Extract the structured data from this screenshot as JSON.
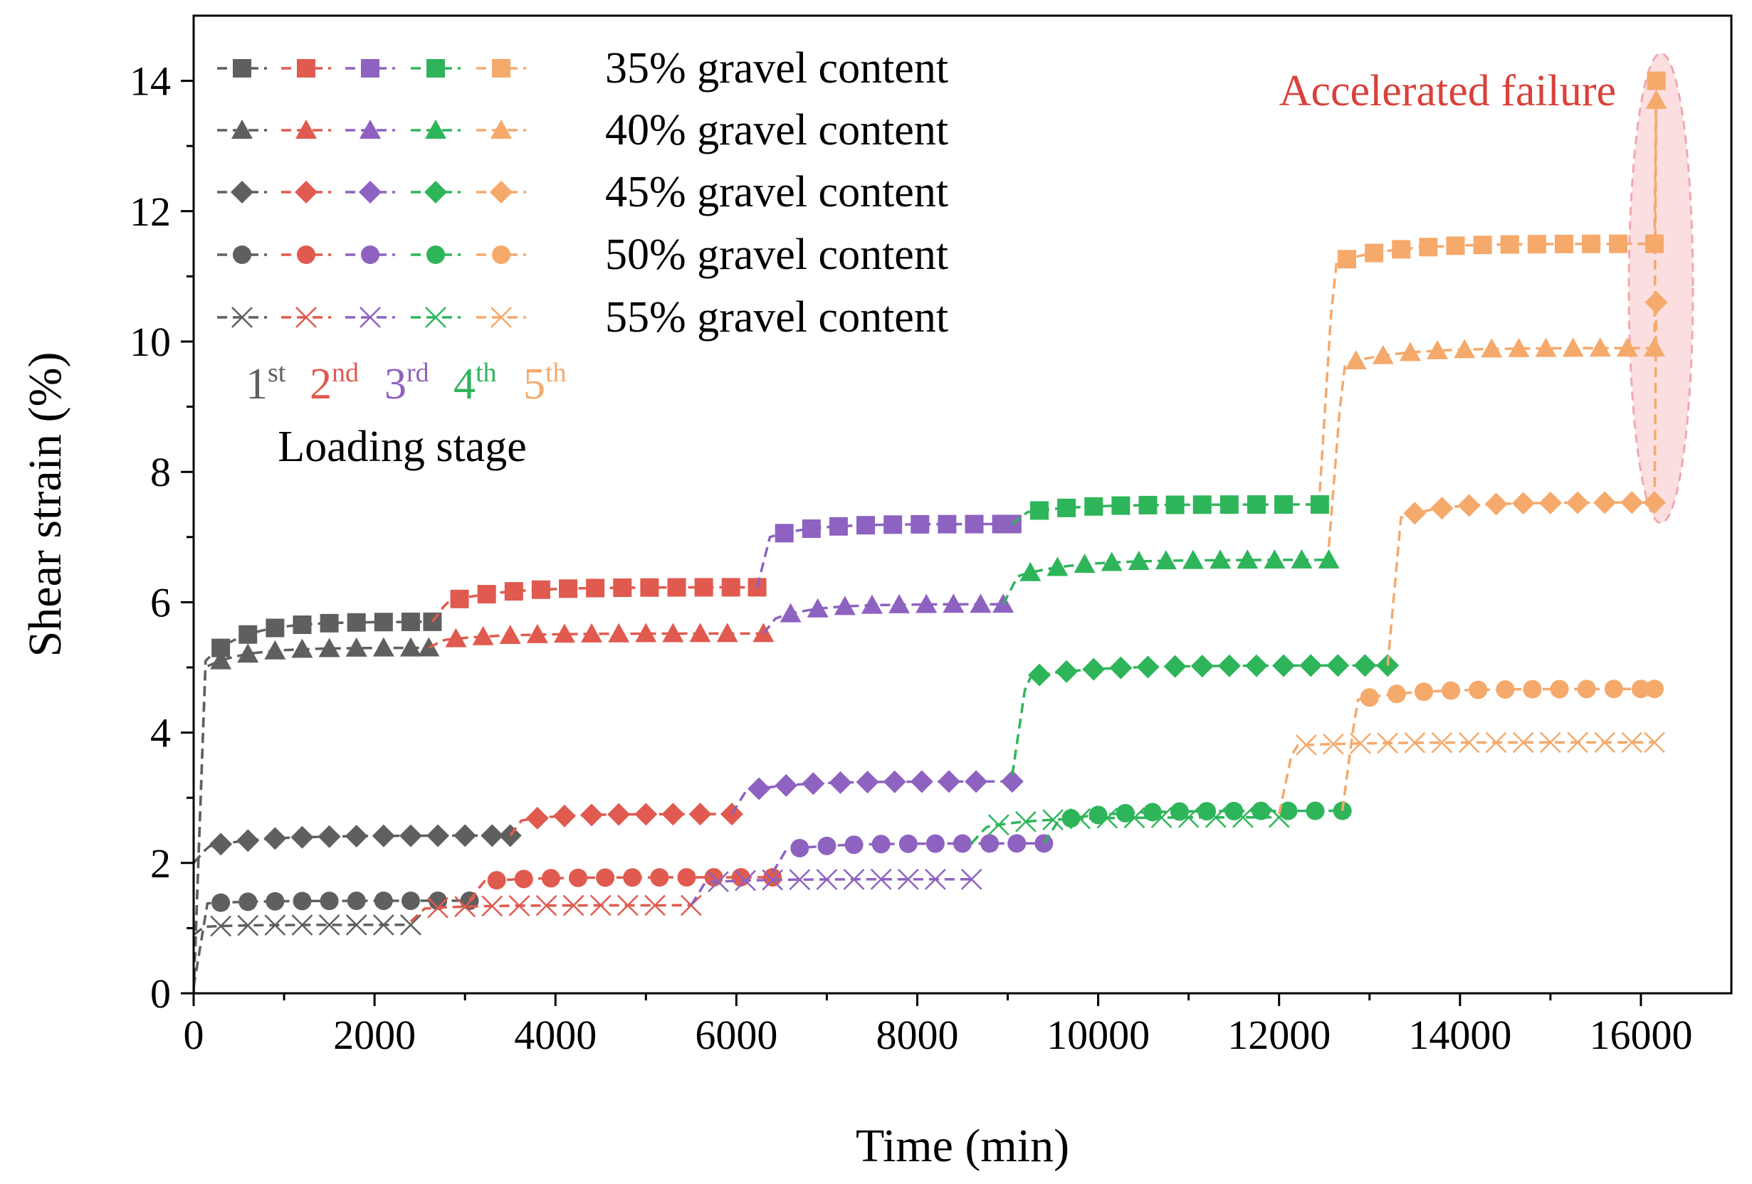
{
  "chart_data": {
    "type": "line",
    "xlabel": "Time (min)",
    "ylabel": "Shear strain (%)",
    "xlim": [
      0,
      17000
    ],
    "ylim": [
      0,
      15
    ],
    "xticks": [
      0,
      2000,
      4000,
      6000,
      8000,
      10000,
      12000,
      14000,
      16000
    ],
    "yticks": [
      0,
      2,
      4,
      6,
      8,
      10,
      12,
      14
    ],
    "x_tick_labels": [
      "0",
      "2000",
      "4000",
      "6000",
      "8000",
      "10000",
      "12000",
      "14000",
      "16000"
    ],
    "y_tick_labels": [
      "0",
      "2",
      "4",
      "6",
      "8",
      "10",
      "12",
      "14"
    ],
    "stage_colors": [
      "#5f5f5f",
      "#e05a4f",
      "#8e62c0",
      "#2eb55a",
      "#f5a96b"
    ],
    "stage_labels": [
      {
        "num": "1",
        "sup": "st"
      },
      {
        "num": "2",
        "sup": "nd"
      },
      {
        "num": "3",
        "sup": "rd"
      },
      {
        "num": "4",
        "sup": "th"
      },
      {
        "num": "5",
        "sup": "th"
      }
    ],
    "stage_caption": "Loading stage",
    "annotation": {
      "text": "Accelerated failure",
      "color": "#d8423a"
    },
    "series": [
      {
        "name": "35% gravel content",
        "marker": "square",
        "stages": [
          {
            "t0": 0,
            "t1": 2640,
            "s0": 0.0,
            "s1": 5.7,
            "jump": 5.1
          },
          {
            "t0": 2640,
            "t1": 6230,
            "s0": 5.7,
            "s1": 6.23,
            "jump": 6.0
          },
          {
            "t0": 6230,
            "t1": 9050,
            "s0": 6.23,
            "s1": 7.2,
            "jump": 7.0
          },
          {
            "t0": 9050,
            "t1": 12450,
            "s0": 7.2,
            "s1": 7.5,
            "jump": 7.38
          },
          {
            "t0": 12450,
            "t1": 16150,
            "s0": 7.7,
            "s1": 11.5,
            "jump": 11.2,
            "end": 14.0
          }
        ]
      },
      {
        "name": "40% gravel content",
        "marker": "triangle",
        "stages": [
          {
            "t0": 0,
            "t1": 2600,
            "s0": 0.0,
            "s1": 5.3,
            "jump": 5.0
          },
          {
            "t0": 2600,
            "t1": 6300,
            "s0": 5.3,
            "s1": 5.52,
            "jump": 5.42
          },
          {
            "t0": 6300,
            "t1": 8950,
            "s0": 5.52,
            "s1": 5.97,
            "jump": 5.75
          },
          {
            "t0": 8950,
            "t1": 12550,
            "s0": 5.97,
            "s1": 6.65,
            "jump": 6.4
          },
          {
            "t0": 12550,
            "t1": 16150,
            "s0": 6.85,
            "s1": 9.9,
            "jump": 9.65,
            "end": 13.7
          }
        ]
      },
      {
        "name": "45% gravel content",
        "marker": "diamond",
        "stages": [
          {
            "t0": 0,
            "t1": 3500,
            "s0": 2.0,
            "s1": 2.42,
            "jump": 2.25
          },
          {
            "t0": 3500,
            "t1": 5950,
            "s0": 2.42,
            "s1": 2.75,
            "jump": 2.65
          },
          {
            "t0": 5950,
            "t1": 9050,
            "s0": 2.75,
            "s1": 3.25,
            "jump": 3.1
          },
          {
            "t0": 9050,
            "t1": 13200,
            "s0": 3.35,
            "s1": 5.03,
            "jump": 4.85
          },
          {
            "t0": 13200,
            "t1": 16150,
            "s0": 5.03,
            "s1": 7.53,
            "jump": 7.3,
            "end": 10.6
          }
        ]
      },
      {
        "name": "50% gravel content",
        "marker": "circle",
        "stages": [
          {
            "t0": 0,
            "t1": 3050,
            "s0": 0.1,
            "s1": 1.42,
            "jump": 1.38
          },
          {
            "t0": 3050,
            "t1": 6400,
            "s0": 1.42,
            "s1": 1.78,
            "jump": 1.72
          },
          {
            "t0": 6400,
            "t1": 9400,
            "s0": 1.85,
            "s1": 2.3,
            "jump": 2.2
          },
          {
            "t0": 9400,
            "t1": 12700,
            "s0": 2.3,
            "s1": 2.8,
            "jump": 2.65
          },
          {
            "t0": 12700,
            "t1": 16150,
            "s0": 2.8,
            "s1": 4.67,
            "jump": 4.5
          }
        ]
      },
      {
        "name": "55% gravel content",
        "marker": "cross",
        "stages": [
          {
            "t0": 0,
            "t1": 2400,
            "s0": 0.9,
            "s1": 1.05,
            "jump": 1.02
          },
          {
            "t0": 2400,
            "t1": 5500,
            "s0": 1.1,
            "s1": 1.35,
            "jump": 1.3
          },
          {
            "t0": 5500,
            "t1": 8600,
            "s0": 1.35,
            "s1": 1.75,
            "jump": 1.7
          },
          {
            "t0": 8600,
            "t1": 12000,
            "s0": 2.3,
            "s1": 2.7,
            "jump": 2.55
          },
          {
            "t0": 12000,
            "t1": 16150,
            "s0": 2.75,
            "s1": 3.85,
            "jump": 3.8
          }
        ]
      }
    ]
  }
}
